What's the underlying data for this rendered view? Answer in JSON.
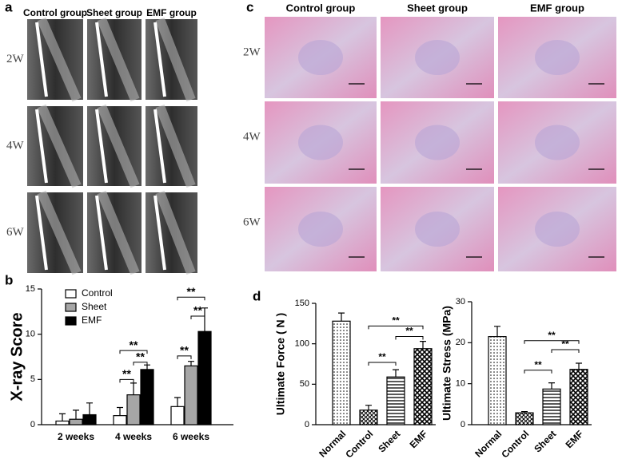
{
  "panel_labels": [
    "a",
    "b",
    "c",
    "d"
  ],
  "xray": {
    "columns": [
      "Control group",
      "Sheet group",
      "EMF group"
    ],
    "rows": [
      "2W",
      "4W",
      "6W"
    ]
  },
  "histology": {
    "columns": [
      "Control group",
      "Sheet group",
      "EMF group"
    ],
    "rows": [
      "2W",
      "4W",
      "6W"
    ]
  },
  "chart_data": [
    {
      "type": "bar",
      "ylabel": "X-ray Score",
      "categories": [
        "2 weeks",
        "4 weeks",
        "6 weeks"
      ],
      "series": [
        {
          "name": "Control",
          "color": "#ffffff",
          "values": [
            0.4,
            1.0,
            2.0
          ],
          "errors": [
            0.8,
            0.9,
            1.0
          ]
        },
        {
          "name": "Sheet",
          "color": "#a6a6a6",
          "values": [
            0.6,
            3.3,
            6.5
          ],
          "errors": [
            1.0,
            1.3,
            0.5
          ]
        },
        {
          "name": "EMF",
          "color": "#000000",
          "values": [
            1.1,
            6.1,
            10.3
          ],
          "errors": [
            1.3,
            0.5,
            2.6
          ]
        }
      ],
      "ylim": [
        0,
        15
      ],
      "yticks": [
        0,
        5,
        10,
        15
      ],
      "grid": false,
      "legend": "top-left",
      "annotations": [
        "**",
        "**",
        "**",
        "**",
        "**",
        "**"
      ]
    },
    {
      "type": "bar",
      "ylabel": "Ultimate Force ( N )",
      "categories": [
        "Normal",
        "Control",
        "Sheet",
        "EMF"
      ],
      "values": [
        128,
        18,
        59,
        94
      ],
      "errors": [
        10,
        6,
        9,
        9
      ],
      "patterns": [
        "dots",
        "crosshatch",
        "hlines",
        "checker"
      ],
      "ylim": [
        0,
        150
      ],
      "yticks": [
        0,
        50,
        100,
        150
      ],
      "grid": false,
      "annotations": [
        "**",
        "**",
        "**"
      ]
    },
    {
      "type": "bar",
      "ylabel": "Ultimate Stress (MPa)",
      "categories": [
        "Normal",
        "Control",
        "Sheet",
        "EMF"
      ],
      "values": [
        21.5,
        2.9,
        8.7,
        13.5
      ],
      "errors": [
        2.5,
        0.3,
        1.5,
        1.5
      ],
      "patterns": [
        "dots",
        "crosshatch",
        "hlines",
        "checker"
      ],
      "ylim": [
        0,
        30
      ],
      "yticks": [
        0,
        10,
        20,
        30
      ],
      "grid": false,
      "annotations": [
        "**",
        "**",
        "**"
      ]
    }
  ]
}
